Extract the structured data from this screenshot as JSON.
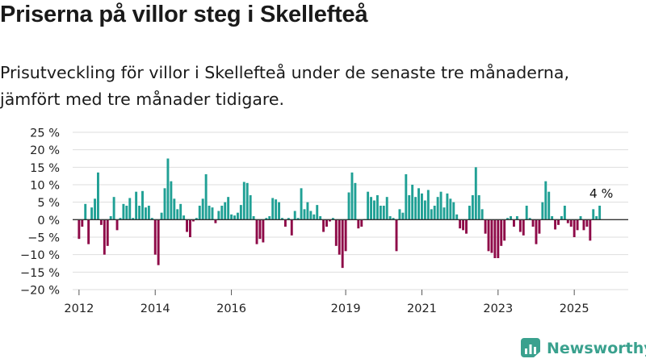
{
  "title": "Priserna på villor steg i Skellefteå",
  "subtitle": "Prisutveckling för villor i Skellefteå under de senaste tre månaderna, jämfört med tre månader tidigare.",
  "brand": {
    "name": "Newsworthy",
    "icon": "newsworthy-logo-icon"
  },
  "colors": {
    "positive": "#20a095",
    "negative": "#8e0a48",
    "grid": "#dedede",
    "zero_line": "#333333"
  },
  "chart_data": {
    "type": "bar",
    "y_unit": "%",
    "ylim": [
      -20,
      25
    ],
    "yticks": [
      25,
      20,
      15,
      10,
      5,
      0,
      -5,
      -10,
      -15,
      -20
    ],
    "ytick_labels": [
      "25 %",
      "20 %",
      "15 %",
      "10 %",
      "5 %",
      "0 %",
      "−5 %",
      "−10 %",
      "−15 %",
      "−20 %"
    ],
    "xlim": [
      "2011-11",
      "2026-06"
    ],
    "xtick_labels": [
      "2012",
      "2014",
      "2016",
      "2019",
      "2021",
      "2023",
      "2025"
    ],
    "xtick_months": [
      "2012-01",
      "2014-01",
      "2016-01",
      "2019-01",
      "2021-01",
      "2023-01",
      "2025-01"
    ],
    "grid": true,
    "last_value_label": "4 %",
    "start_month": "2012-01",
    "values": [
      -5.5,
      -2,
      4.5,
      -7,
      3.5,
      6,
      13.5,
      -1.5,
      -10,
      -7.5,
      1,
      6.5,
      -3,
      0.5,
      4.5,
      4,
      6.2,
      0.5,
      8,
      4,
      8.2,
      3.5,
      4,
      0.5,
      -10,
      -13,
      2,
      9,
      17.5,
      11,
      6,
      3,
      4.5,
      1.2,
      -3.5,
      -5,
      -0.5,
      0.5,
      4,
      6,
      13,
      4,
      3.5,
      -1,
      2.5,
      4,
      5,
      6.5,
      1.5,
      1.2,
      2,
      4.2,
      10.8,
      10.5,
      7,
      1,
      -7,
      -5.5,
      -6.5,
      0.5,
      1,
      6.2,
      5.8,
      5,
      0.5,
      -2,
      0.5,
      -4.5,
      2.5,
      0.5,
      9,
      3,
      5,
      2.5,
      1.5,
      4.2,
      1,
      -3.5,
      -2,
      -0.5,
      0.5,
      -7.5,
      -10,
      -13.8,
      -9,
      7.8,
      13.5,
      10.5,
      -2.5,
      -2,
      0.2,
      8,
      6.5,
      5.5,
      7,
      4,
      4,
      6.5,
      1,
      0.5,
      -9,
      3,
      2,
      13,
      7,
      10,
      6.5,
      9,
      7.5,
      5.5,
      8.5,
      3,
      4,
      6.5,
      8,
      3.5,
      7.5,
      6,
      5,
      1.5,
      -2.5,
      -3,
      -4,
      4,
      7,
      15,
      7,
      3,
      -4,
      -9,
      -9.5,
      -11,
      -11,
      -7.5,
      -6,
      0.5,
      1,
      -2,
      1,
      -3.5,
      -4.5,
      4,
      0.5,
      -2,
      -7,
      -4,
      5,
      11,
      8,
      1,
      -2.8,
      -1.5,
      1,
      4,
      -1,
      -2,
      -5,
      -3,
      1,
      -3,
      -2,
      -6,
      3,
      1,
      4
    ]
  }
}
